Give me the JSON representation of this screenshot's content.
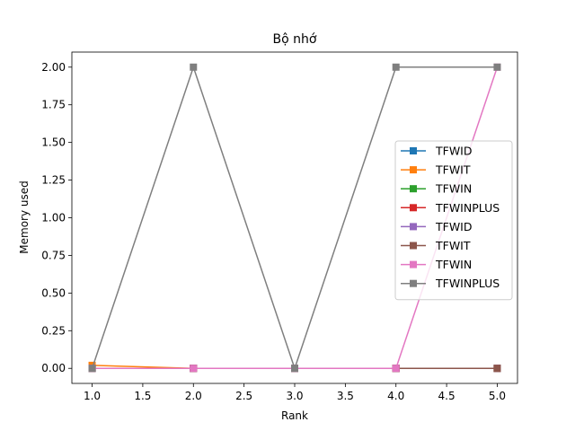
{
  "chart_data": {
    "type": "line",
    "title": "Bộ nhớ",
    "xlabel": "Rank",
    "ylabel": "Memory used",
    "xlim": [
      0.8,
      5.2
    ],
    "ylim": [
      -0.1,
      2.1
    ],
    "xticks": [
      "1.0",
      "1.5",
      "2.0",
      "2.5",
      "3.0",
      "3.5",
      "4.0",
      "4.5",
      "5.0"
    ],
    "yticks": [
      "0.00",
      "0.25",
      "0.50",
      "0.75",
      "1.00",
      "1.25",
      "1.50",
      "1.75",
      "2.00"
    ],
    "grid": false,
    "legend_position": "center-right",
    "x": [
      1,
      2,
      3,
      4,
      5
    ],
    "series": [
      {
        "name": "TFWID",
        "color": "#1f77b4",
        "marker": "square",
        "values": [
          0.0,
          0.0,
          0.0,
          0.0,
          0.0
        ]
      },
      {
        "name": "TFWIT",
        "color": "#ff7f0e",
        "marker": "square",
        "values": [
          0.02,
          0.0,
          0.0,
          0.0,
          0.0
        ]
      },
      {
        "name": "TFWIN",
        "color": "#2ca02c",
        "marker": "square",
        "values": [
          0.0,
          0.0,
          0.0,
          0.0,
          0.0
        ]
      },
      {
        "name": "TFWINPLUS",
        "color": "#d62728",
        "marker": "square",
        "values": [
          0.0,
          0.0,
          0.0,
          0.0,
          0.0
        ]
      },
      {
        "name": "TFWID",
        "color": "#9467bd",
        "marker": "square",
        "values": [
          0.0,
          0.0,
          0.0,
          0.0,
          0.0
        ]
      },
      {
        "name": "TFWIT",
        "color": "#8c564b",
        "marker": "square",
        "values": [
          0.0,
          0.0,
          0.0,
          0.0,
          0.0
        ]
      },
      {
        "name": "TFWIN",
        "color": "#e377c2",
        "marker": "square",
        "values": [
          0.0,
          0.0,
          0.0,
          0.0,
          2.0
        ]
      },
      {
        "name": "TFWINPLUS",
        "color": "#7f7f7f",
        "marker": "square",
        "values": [
          0.0,
          2.0,
          0.0,
          2.0,
          2.0
        ]
      }
    ]
  }
}
